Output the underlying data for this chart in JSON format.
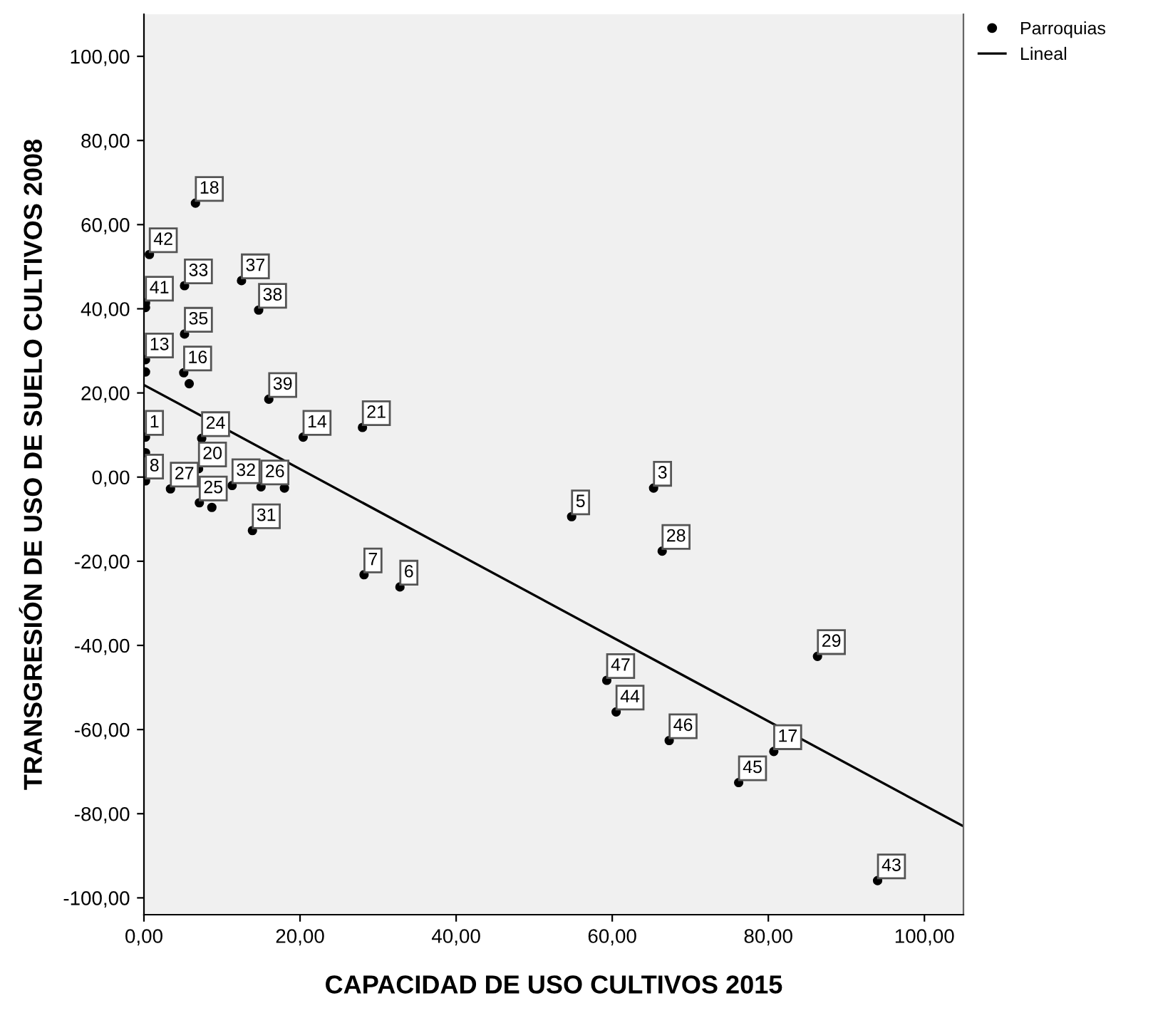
{
  "chart_data": {
    "type": "scatter",
    "xlabel": "CAPACIDAD DE USO CULTIVOS 2015",
    "ylabel": "TRANSGRESIÓN DE USO DE SUELO CULTIVOS 2008",
    "xlim": [
      0,
      105
    ],
    "ylim": [
      -104,
      110
    ],
    "xticks": [
      {
        "value": 0,
        "label": "0,00"
      },
      {
        "value": 20,
        "label": "20,00"
      },
      {
        "value": 40,
        "label": "40,00"
      },
      {
        "value": 60,
        "label": "60,00"
      },
      {
        "value": 80,
        "label": "80,00"
      },
      {
        "value": 100,
        "label": "100,00"
      }
    ],
    "yticks": [
      {
        "value": -100,
        "label": "-100,00"
      },
      {
        "value": -80,
        "label": "-80,00"
      },
      {
        "value": -60,
        "label": "-60,00"
      },
      {
        "value": -40,
        "label": "-40,00"
      },
      {
        "value": -20,
        "label": "-20,00"
      },
      {
        "value": 0,
        "label": "0,00"
      },
      {
        "value": 20,
        "label": "20,00"
      },
      {
        "value": 40,
        "label": "40,00"
      },
      {
        "value": 60,
        "label": "60,00"
      },
      {
        "value": 80,
        "label": "80,00"
      },
      {
        "value": 100,
        "label": "100,00"
      }
    ],
    "grid": false,
    "legend": "top right",
    "marker": "circle",
    "series": [
      {
        "name": "Parroquias",
        "color": "#000000",
        "x": [
          7.4,
          7.0,
          11.3,
          80.7,
          6.6,
          0.7,
          5.2,
          0.2,
          0.2,
          12.5,
          14.7,
          5.2,
          0.2,
          0.2,
          5.1,
          5.8,
          16.0,
          20.4,
          28.0,
          0.2,
          0.2,
          0.2,
          3.4,
          7.1,
          8.7,
          15.0,
          18.0,
          13.9,
          28.2,
          32.8,
          54.8,
          65.3,
          66.4,
          86.3,
          59.3,
          60.5,
          67.3,
          76.2,
          94.0
        ],
        "values": [
          9.2,
          2.0,
          -2.0,
          -65.2,
          65.1,
          52.9,
          45.5,
          41.4,
          40.3,
          46.7,
          39.7,
          34.0,
          27.9,
          25.0,
          24.8,
          22.2,
          18.5,
          9.5,
          11.8,
          9.5,
          5.8,
          -0.9,
          -2.8,
          -6.1,
          -7.2,
          -2.3,
          -2.6,
          -12.7,
          -23.2,
          -26.1,
          -9.4,
          -2.6,
          -17.6,
          -42.6,
          -48.3,
          -55.8,
          -62.6,
          -72.6,
          -95.9
        ]
      },
      {
        "name": "Lineal",
        "type": "line",
        "color": "#000000",
        "marker": "none",
        "x": [
          0,
          105
        ],
        "values": [
          21.9,
          -83.0
        ]
      }
    ],
    "annotations": [
      {
        "text": "18",
        "x": 6.6,
        "y": 65.1
      },
      {
        "text": "42",
        "x": 0.7,
        "y": 52.9
      },
      {
        "text": "33",
        "x": 5.2,
        "y": 45.5
      },
      {
        "text": "41",
        "x": 0.2,
        "y": 41.4
      },
      {
        "text": "37",
        "x": 12.5,
        "y": 46.7
      },
      {
        "text": "38",
        "x": 14.7,
        "y": 39.7
      },
      {
        "text": "35",
        "x": 5.2,
        "y": 34.0
      },
      {
        "text": "13",
        "x": 0.2,
        "y": 27.9
      },
      {
        "text": "16",
        "x": 5.1,
        "y": 24.8
      },
      {
        "text": "39",
        "x": 16.0,
        "y": 18.5
      },
      {
        "text": "14",
        "x": 20.4,
        "y": 9.5
      },
      {
        "text": "21",
        "x": 28.0,
        "y": 11.8
      },
      {
        "text": "1",
        "x": 0.2,
        "y": 9.5
      },
      {
        "text": "24",
        "x": 7.4,
        "y": 9.2
      },
      {
        "text": "20",
        "x": 7.0,
        "y": 2.0
      },
      {
        "text": "8",
        "x": 0.2,
        "y": -0.9
      },
      {
        "text": "27",
        "x": 3.4,
        "y": -2.8
      },
      {
        "text": "25",
        "x": 7.1,
        "y": -6.1
      },
      {
        "text": "32",
        "x": 11.3,
        "y": -2.0
      },
      {
        "text": "26",
        "x": 15.0,
        "y": -2.3
      },
      {
        "text": "31",
        "x": 13.9,
        "y": -12.7
      },
      {
        "text": "7",
        "x": 28.2,
        "y": -23.2
      },
      {
        "text": "6",
        "x": 32.8,
        "y": -26.1
      },
      {
        "text": "5",
        "x": 54.8,
        "y": -9.4
      },
      {
        "text": "3",
        "x": 65.3,
        "y": -2.6
      },
      {
        "text": "28",
        "x": 66.4,
        "y": -17.6
      },
      {
        "text": "29",
        "x": 86.3,
        "y": -42.6
      },
      {
        "text": "47",
        "x": 59.3,
        "y": -48.3
      },
      {
        "text": "44",
        "x": 60.5,
        "y": -55.8
      },
      {
        "text": "46",
        "x": 67.3,
        "y": -62.6
      },
      {
        "text": "17",
        "x": 80.7,
        "y": -65.2
      },
      {
        "text": "45",
        "x": 76.2,
        "y": -72.6
      },
      {
        "text": "43",
        "x": 94.0,
        "y": -95.9
      }
    ]
  }
}
